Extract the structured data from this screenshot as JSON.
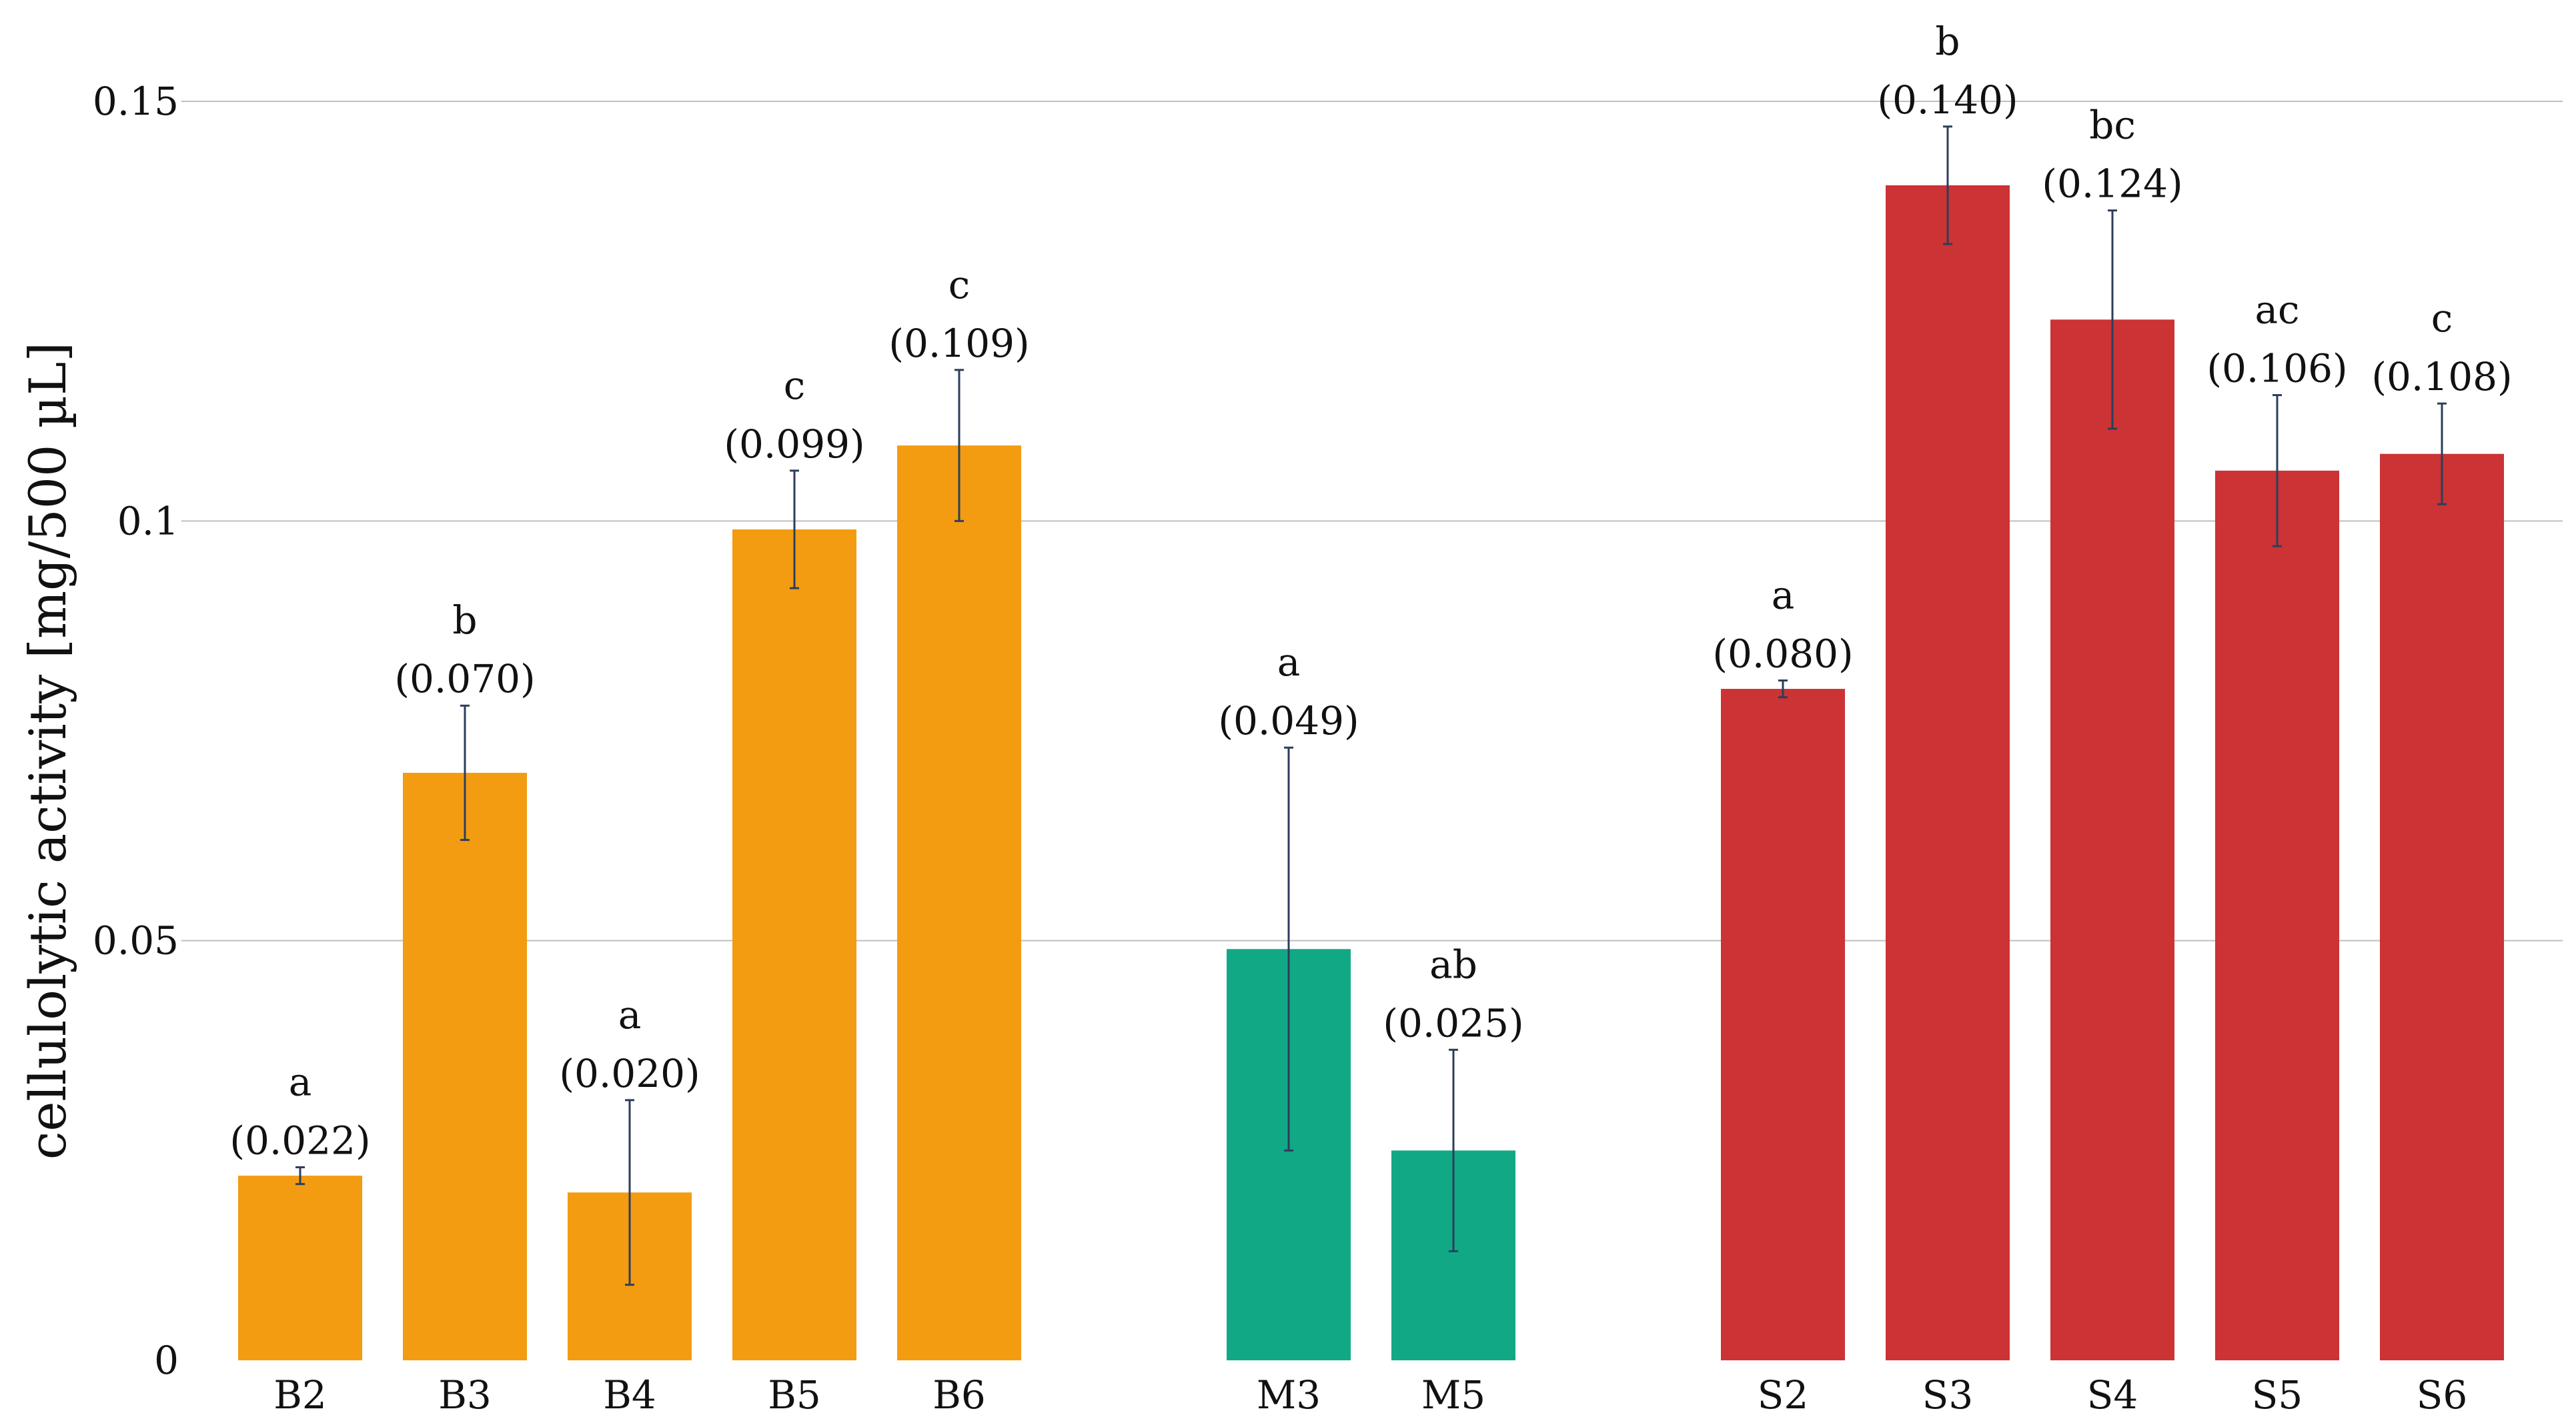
{
  "chart_data": {
    "type": "bar",
    "ylabel": "cellulolytic activity [mg/500 µL]",
    "ylim": [
      0,
      0.15
    ],
    "yticks": [
      {
        "value": 0,
        "label": "0"
      },
      {
        "value": 0.05,
        "label": "0.05"
      },
      {
        "value": 0.1,
        "label": "0.1"
      },
      {
        "value": 0.15,
        "label": "0.15"
      }
    ],
    "grid": "horizontal",
    "colors": {
      "B": "#F39C12",
      "M": "#11A985",
      "S": "#CB3335",
      "error": "#2C3E5A",
      "grid": "#BFBFBF"
    },
    "bars": [
      {
        "category": "B2",
        "group": "B",
        "value": 0.022,
        "error": 0.001,
        "letter": "a",
        "value_label": "(0.022)"
      },
      {
        "category": "B3",
        "group": "B",
        "value": 0.07,
        "error": 0.008,
        "letter": "b",
        "value_label": "(0.070)"
      },
      {
        "category": "B4",
        "group": "B",
        "value": 0.02,
        "error": 0.011,
        "letter": "a",
        "value_label": "(0.020)"
      },
      {
        "category": "B5",
        "group": "B",
        "value": 0.099,
        "error": 0.007,
        "letter": "c",
        "value_label": "(0.099)"
      },
      {
        "category": "B6",
        "group": "B",
        "value": 0.109,
        "error": 0.009,
        "letter": "c",
        "value_label": "(0.109)"
      },
      {
        "category": "M3",
        "group": "M",
        "value": 0.049,
        "error": 0.024,
        "letter": "a",
        "value_label": "(0.049)"
      },
      {
        "category": "M5",
        "group": "M",
        "value": 0.025,
        "error": 0.012,
        "letter": "ab",
        "value_label": "(0.025)"
      },
      {
        "category": "S2",
        "group": "S",
        "value": 0.08,
        "error": 0.001,
        "letter": "a",
        "value_label": "(0.080)"
      },
      {
        "category": "S3",
        "group": "S",
        "value": 0.14,
        "error": 0.007,
        "letter": "b",
        "value_label": "(0.140)"
      },
      {
        "category": "S4",
        "group": "S",
        "value": 0.124,
        "error": 0.013,
        "letter": "bc",
        "value_label": "(0.124)"
      },
      {
        "category": "S5",
        "group": "S",
        "value": 0.106,
        "error": 0.009,
        "letter": "ac",
        "value_label": "(0.106)"
      },
      {
        "category": "S6",
        "group": "S",
        "value": 0.108,
        "error": 0.006,
        "letter": "c",
        "value_label": "(0.108)"
      }
    ]
  }
}
